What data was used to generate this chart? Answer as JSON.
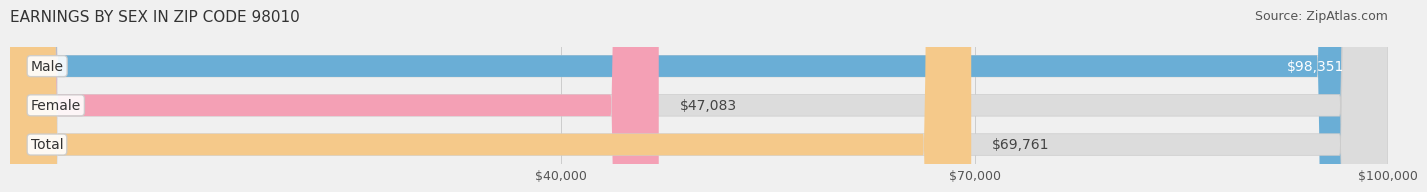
{
  "title": "EARNINGS BY SEX IN ZIP CODE 98010",
  "source": "Source: ZipAtlas.com",
  "categories": [
    "Male",
    "Female",
    "Total"
  ],
  "values": [
    98351,
    47083,
    69761
  ],
  "bar_colors": [
    "#6aaed6",
    "#f4a0b5",
    "#f5c98a"
  ],
  "bar_label_colors": [
    "#6aaed6",
    "#f4a0b5",
    "#f5c98a"
  ],
  "value_labels": [
    "$98,351",
    "$47,083",
    "$69,761"
  ],
  "x_min": 0,
  "x_max": 100000,
  "xticks": [
    40000,
    70000,
    100000
  ],
  "xtick_labels": [
    "$40,000",
    "$70,000",
    "$100,000"
  ],
  "bg_color": "#f0f0f0",
  "bar_bg_color": "#e8e8e8",
  "title_fontsize": 11,
  "source_fontsize": 9,
  "label_fontsize": 10,
  "value_fontsize": 10,
  "tick_fontsize": 9,
  "bar_height": 0.55,
  "bar_spacing": 1.0
}
